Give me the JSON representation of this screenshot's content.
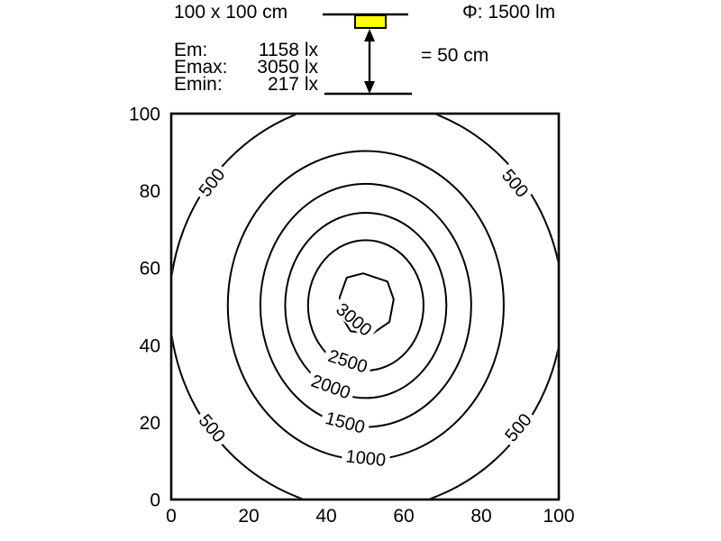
{
  "header": {
    "area_label": "100 x 100 cm",
    "flux_label": "Φ: 1500 lm",
    "distance_label": "= 50 cm",
    "lamp_color": "#ffff00",
    "stats": [
      {
        "name": "Em:",
        "value": "1158 lx"
      },
      {
        "name": "Emax:",
        "value": "3050 lx"
      },
      {
        "name": "Emin:",
        "value": "217 lx"
      }
    ]
  },
  "chart_data": {
    "type": "contour",
    "title": "",
    "xlabel": "",
    "ylabel": "",
    "xlim": [
      0,
      100
    ],
    "ylim": [
      0,
      100
    ],
    "x_ticks": [
      0,
      20,
      40,
      60,
      80,
      100
    ],
    "y_ticks": [
      0,
      20,
      40,
      60,
      80,
      100
    ],
    "grid": false,
    "levels_lx": [
      500,
      1000,
      1500,
      2000,
      2500,
      3000
    ],
    "contours": [
      {
        "level": 500,
        "shape": "ellipse",
        "cx": 50.3,
        "cy": 50.3,
        "rx": 50.7,
        "ry": 53.0
      },
      {
        "level": 1000,
        "shape": "ellipse",
        "cx": 50.2,
        "cy": 50.3,
        "rx": 35.6,
        "ry": 40.0
      },
      {
        "level": 1500,
        "shape": "ellipse",
        "cx": 50.2,
        "cy": 50.3,
        "rx": 27.2,
        "ry": 31.5
      },
      {
        "level": 2000,
        "shape": "ellipse",
        "cx": 50.2,
        "cy": 50.3,
        "rx": 20.8,
        "ry": 24.0
      },
      {
        "level": 2500,
        "shape": "ellipse",
        "cx": 50.2,
        "cy": 50.3,
        "rx": 14.9,
        "ry": 16.9
      },
      {
        "level": 3000,
        "shape": "polygon",
        "points": [
          [
            49.5,
            58.6
          ],
          [
            55.8,
            56.5
          ],
          [
            57.4,
            51.9
          ],
          [
            56.3,
            46.0
          ],
          [
            51.9,
            43.0
          ],
          [
            46.3,
            43.6
          ],
          [
            43.6,
            48.0
          ],
          [
            43.5,
            52.5
          ],
          [
            45.3,
            57.5
          ]
        ]
      }
    ],
    "contour_labels": [
      {
        "text": "500",
        "x": 10.4,
        "y": 82.2,
        "rot": -52
      },
      {
        "text": "500",
        "x": 88.8,
        "y": 82.0,
        "rot": 50
      },
      {
        "text": "500",
        "x": 10.6,
        "y": 18.5,
        "rot": 50
      },
      {
        "text": "500",
        "x": 89.5,
        "y": 18.7,
        "rot": -50
      },
      {
        "text": "1000",
        "x": 50.2,
        "y": 10.8,
        "rot": 6
      },
      {
        "text": "1500",
        "x": 44.9,
        "y": 20.0,
        "rot": 15
      },
      {
        "text": "2000",
        "x": 41.2,
        "y": 29.3,
        "rot": 20
      },
      {
        "text": "2500",
        "x": 45.6,
        "y": 35.9,
        "rot": 18
      },
      {
        "text": "3000",
        "x": 47.2,
        "y": 46.7,
        "rot": 40
      }
    ]
  }
}
